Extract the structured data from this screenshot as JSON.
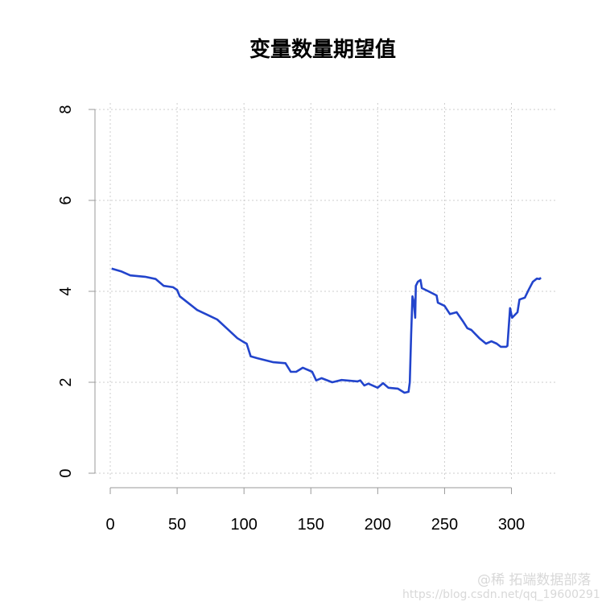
{
  "chart_data": {
    "type": "line",
    "title": "变量数量期望值",
    "xlabel": "",
    "ylabel": "",
    "xlim": [
      0,
      320
    ],
    "ylim": [
      0,
      8
    ],
    "xticks": [
      "0",
      "50",
      "100",
      "150",
      "200",
      "250",
      "300"
    ],
    "yticks": [
      "0",
      "2",
      "4",
      "6",
      "8"
    ],
    "grid": true,
    "line_color": "#2244cc",
    "x": [
      1,
      8,
      15,
      26,
      34,
      40,
      47,
      50,
      52,
      59,
      65,
      75,
      80,
      87,
      95,
      100,
      102,
      105,
      110,
      122,
      131,
      135,
      139,
      144,
      151,
      154,
      158,
      166,
      173,
      185,
      187,
      190,
      193,
      200,
      204,
      208,
      215,
      220,
      223,
      224,
      225,
      226,
      227,
      228,
      228.5,
      230,
      232,
      233,
      238,
      244,
      245,
      250,
      254,
      259,
      264,
      267,
      270,
      276,
      281,
      285,
      289,
      292,
      296,
      297,
      299,
      300.5,
      304.5,
      306,
      310,
      313,
      316,
      319,
      321,
      322
    ],
    "y": [
      4.5,
      4.44,
      4.35,
      4.32,
      4.27,
      4.12,
      4.09,
      4.03,
      3.89,
      3.73,
      3.59,
      3.45,
      3.38,
      3.19,
      2.97,
      2.88,
      2.85,
      2.57,
      2.53,
      2.44,
      2.42,
      2.23,
      2.23,
      2.32,
      2.23,
      2.04,
      2.09,
      2.0,
      2.05,
      2.02,
      2.04,
      1.93,
      1.97,
      1.88,
      1.98,
      1.88,
      1.86,
      1.77,
      1.79,
      2.0,
      3.06,
      3.89,
      3.77,
      3.42,
      4.12,
      4.21,
      4.25,
      4.07,
      4.0,
      3.91,
      3.75,
      3.68,
      3.5,
      3.54,
      3.33,
      3.19,
      3.15,
      2.97,
      2.85,
      2.9,
      2.85,
      2.78,
      2.78,
      2.8,
      3.63,
      3.42,
      3.54,
      3.82,
      3.86,
      4.04,
      4.21,
      4.28,
      4.27,
      4.3
    ]
  },
  "watermark": {
    "line1": "@稀 拓端数据部落",
    "line2": "https://blog.csdn.net/qq_19600291"
  }
}
